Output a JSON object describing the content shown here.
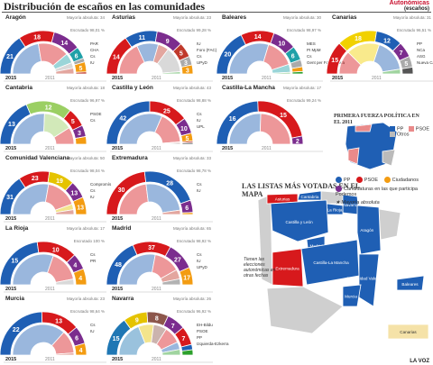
{
  "page": {
    "title": "Distribución de escaños en las comunidades",
    "tag_autonomicas": "Autonómicas",
    "tag_escanos": "(escaños)",
    "footer": "LA VOZ"
  },
  "colors": {
    "PP": "#1f5fb4",
    "PSOE": "#d7191c",
    "Podemos": "#7b2d8e",
    "Cs": "#f39c12",
    "IU": "#c0392b",
    "other_a": "#2ca02c",
    "other_b": "#e5c300",
    "other_c": "#8c564b"
  },
  "chart_data": [
    {
      "type": "bar",
      "title": "Aragón",
      "majority": "Mayoría absoluta: 34",
      "scrutiny": "Escrutado 98,01 %",
      "year_labels": [
        "2015",
        "2011"
      ],
      "series": [
        {
          "name": "PP",
          "values": [
            21,
            30
          ]
        },
        {
          "name": "PSOE",
          "values": [
            18,
            22
          ]
        },
        {
          "name": "Podemos",
          "values": [
            14,
            0
          ]
        },
        {
          "name": "PAR",
          "values": [
            6,
            7
          ]
        },
        {
          "name": "CHA",
          "values": [
            2,
            4
          ]
        },
        {
          "name": "Cs",
          "values": [
            5,
            0
          ]
        },
        {
          "name": "IU",
          "values": [
            1,
            4
          ]
        }
      ]
    },
    {
      "type": "bar",
      "title": "Asturias",
      "majority": "Mayoría absoluta: 23",
      "scrutiny": "Escrutado 99,28 %",
      "year_labels": [
        "2015",
        "2011"
      ],
      "series": [
        {
          "name": "PSOE",
          "values": [
            14,
            16
          ]
        },
        {
          "name": "PP",
          "values": [
            11,
            10
          ]
        },
        {
          "name": "Podemos",
          "values": [
            9,
            0
          ]
        },
        {
          "name": "IU",
          "values": [
            5,
            5
          ]
        },
        {
          "name": "Foro (FAC)",
          "values": [
            3,
            12
          ]
        },
        {
          "name": "Cs",
          "values": [
            3,
            0
          ]
        },
        {
          "name": "UPyD",
          "values": [
            0,
            1
          ]
        }
      ]
    },
    {
      "type": "bar",
      "title": "Baleares",
      "majority": "Mayoría absoluta: 30",
      "scrutiny": "Escrutado 98,97 %",
      "year_labels": [
        "2015",
        "2011"
      ],
      "series": [
        {
          "name": "PP",
          "values": [
            20,
            35
          ]
        },
        {
          "name": "PSOE",
          "values": [
            14,
            18
          ]
        },
        {
          "name": "Podemos",
          "values": [
            10,
            0
          ]
        },
        {
          "name": "MES",
          "values": [
            6,
            5
          ]
        },
        {
          "name": "PI MpM",
          "values": [
            3,
            0
          ]
        },
        {
          "name": "Cs",
          "values": [
            2,
            0
          ]
        },
        {
          "name": "Gent per Formentera",
          "values": [
            1,
            1
          ]
        }
      ]
    },
    {
      "type": "bar",
      "title": "Canarias",
      "majority": "Mayoría absoluta: 31",
      "scrutiny": "Escrutado 96,51 %",
      "year_labels": [
        "2015",
        "2011"
      ],
      "series": [
        {
          "name": "PSOE",
          "values": [
            15,
            15
          ]
        },
        {
          "name": "CC-PNC",
          "values": [
            18,
            21
          ]
        },
        {
          "name": "PP",
          "values": [
            12,
            21
          ]
        },
        {
          "name": "Podemos",
          "values": [
            7,
            0
          ]
        },
        {
          "name": "NCa",
          "values": [
            5,
            0
          ]
        },
        {
          "name": "ASG",
          "values": [
            3,
            0
          ]
        },
        {
          "name": "Nueva Canarias",
          "values": [
            0,
            3
          ]
        }
      ]
    },
    {
      "type": "bar",
      "title": "Cantabria",
      "majority": "Mayoría absoluta: 18",
      "scrutiny": "Escrutado 96,97 %",
      "year_labels": [
        "2015",
        "2011"
      ],
      "series": [
        {
          "name": "PP",
          "values": [
            13,
            20
          ]
        },
        {
          "name": "PRC",
          "values": [
            12,
            12
          ]
        },
        {
          "name": "PSOE",
          "values": [
            5,
            7
          ]
        },
        {
          "name": "Podemos",
          "values": [
            3,
            0
          ]
        },
        {
          "name": "Cs",
          "values": [
            2,
            0
          ]
        }
      ]
    },
    {
      "type": "bar",
      "title": "Castilla y León",
      "majority": "Mayoría absoluta: 43",
      "scrutiny": "Escrutado 98,88 %",
      "year_labels": [
        "2015",
        "2011"
      ],
      "series": [
        {
          "name": "PP",
          "values": [
            42,
            53
          ]
        },
        {
          "name": "PSOE",
          "values": [
            25,
            29
          ]
        },
        {
          "name": "Podemos",
          "values": [
            10,
            0
          ]
        },
        {
          "name": "Cs",
          "values": [
            5,
            0
          ]
        },
        {
          "name": "IU",
          "values": [
            1,
            1
          ]
        },
        {
          "name": "UPL",
          "values": [
            1,
            1
          ]
        }
      ]
    },
    {
      "type": "bar",
      "title": "Castilla-La Mancha",
      "majority": "Mayoría absoluta: 17",
      "scrutiny": "Escrutado 99,24 %",
      "year_labels": [
        "2015",
        "2011"
      ],
      "series": [
        {
          "name": "PP",
          "values": [
            16,
            25
          ]
        },
        {
          "name": "PSOE",
          "values": [
            15,
            24
          ]
        },
        {
          "name": "Podemos",
          "values": [
            2,
            0
          ]
        }
      ]
    },
    {
      "type": "bar",
      "title": "Comunidad Valenciana",
      "majority": "Mayoría absoluta: 50",
      "scrutiny": "Escrutado 98,04 %",
      "year_labels": [
        "2015",
        "2011"
      ],
      "series": [
        {
          "name": "PP",
          "values": [
            31,
            55
          ]
        },
        {
          "name": "PSOE",
          "values": [
            23,
            33
          ]
        },
        {
          "name": "Compromís",
          "values": [
            19,
            6
          ]
        },
        {
          "name": "Podemos",
          "values": [
            13,
            0
          ]
        },
        {
          "name": "Cs",
          "values": [
            13,
            0
          ]
        },
        {
          "name": "IU",
          "values": [
            0,
            5
          ]
        }
      ]
    },
    {
      "type": "bar",
      "title": "Extremadura",
      "majority": "Mayoría absoluta: 33",
      "scrutiny": "Escrutado 98,78 %",
      "year_labels": [
        "2015",
        "2011"
      ],
      "series": [
        {
          "name": "PSOE",
          "values": [
            30,
            30
          ]
        },
        {
          "name": "PP",
          "values": [
            28,
            32
          ]
        },
        {
          "name": "Podemos",
          "values": [
            6,
            0
          ]
        },
        {
          "name": "Cs",
          "values": [
            1,
            0
          ]
        },
        {
          "name": "IU",
          "values": [
            0,
            3
          ]
        }
      ]
    },
    {
      "type": "bar",
      "title": "La Rioja",
      "majority": "Mayoría absoluta: 17",
      "scrutiny": "Escrutado 100 %",
      "year_labels": [
        "2015",
        "2011"
      ],
      "series": [
        {
          "name": "PP",
          "values": [
            15,
            20
          ]
        },
        {
          "name": "PSOE",
          "values": [
            10,
            11
          ]
        },
        {
          "name": "Podemos",
          "values": [
            4,
            0
          ]
        },
        {
          "name": "Cs",
          "values": [
            4,
            0
          ]
        },
        {
          "name": "PR",
          "values": [
            0,
            2
          ]
        }
      ]
    },
    {
      "type": "bar",
      "title": "Madrid",
      "majority": "Mayoría absoluta: 65",
      "scrutiny": "Escrutado 98,92 %",
      "year_labels": [
        "2015",
        "2011"
      ],
      "series": [
        {
          "name": "PP",
          "values": [
            48,
            72
          ]
        },
        {
          "name": "PSOE",
          "values": [
            37,
            36
          ]
        },
        {
          "name": "Podemos",
          "values": [
            27,
            0
          ]
        },
        {
          "name": "Cs",
          "values": [
            17,
            0
          ]
        },
        {
          "name": "IU",
          "values": [
            0,
            13
          ]
        },
        {
          "name": "UPyD",
          "values": [
            0,
            8
          ]
        }
      ]
    },
    {
      "type": "bar",
      "title": "Murcia",
      "majority": "Mayoría absoluta: 23",
      "scrutiny": "Escrutado 98,64 %",
      "year_labels": [
        "2015",
        "2011"
      ],
      "series": [
        {
          "name": "PP",
          "values": [
            22,
            33
          ]
        },
        {
          "name": "PSOE",
          "values": [
            13,
            11
          ]
        },
        {
          "name": "Podemos",
          "values": [
            6,
            0
          ]
        },
        {
          "name": "Cs",
          "values": [
            4,
            0
          ]
        },
        {
          "name": "IU",
          "values": [
            0,
            1
          ]
        }
      ]
    },
    {
      "type": "bar",
      "title": "Navarra",
      "majority": "Mayoría absoluta: 26",
      "scrutiny": "Escrutado 96,92 %",
      "year_labels": [
        "2015",
        "2011"
      ],
      "series": [
        {
          "name": "UPN",
          "values": [
            15,
            19
          ]
        },
        {
          "name": "Geroa Bai",
          "values": [
            9,
            8
          ]
        },
        {
          "name": "EH-Bildu",
          "values": [
            8,
            7
          ]
        },
        {
          "name": "Podemos",
          "values": [
            7,
            0
          ]
        },
        {
          "name": "PSOE",
          "values": [
            7,
            9
          ]
        },
        {
          "name": "PP",
          "values": [
            2,
            4
          ]
        },
        {
          "name": "Izquierda-Ezkerra",
          "values": [
            2,
            3
          ]
        }
      ]
    }
  ],
  "map_small": {
    "title": "PRIMERA FUERZA POLÍTICA EN EL 2011",
    "legend": [
      "PP",
      "PSOE",
      "Otros"
    ]
  },
  "map_big": {
    "title": "LAS LISTAS MÁS VOTADAS EN EL MAPA",
    "legend": [
      "PP",
      "PSOE",
      "Ciudadanos",
      "Candidaturas en las que participa Podemos"
    ],
    "note": "★ Mayoría absoluta",
    "gray_note": "Tienen las elecciones autonómicas en otras fechas",
    "regions": [
      "Cantabria",
      "Asturias",
      "Navarra",
      "Aragón",
      "La Rioja",
      "Castilla y León",
      "Madrid",
      "Extremadura",
      "Castilla-La Mancha",
      "Comunidad Valenciana",
      "Baleares",
      "Murcia",
      "Canarias"
    ]
  }
}
